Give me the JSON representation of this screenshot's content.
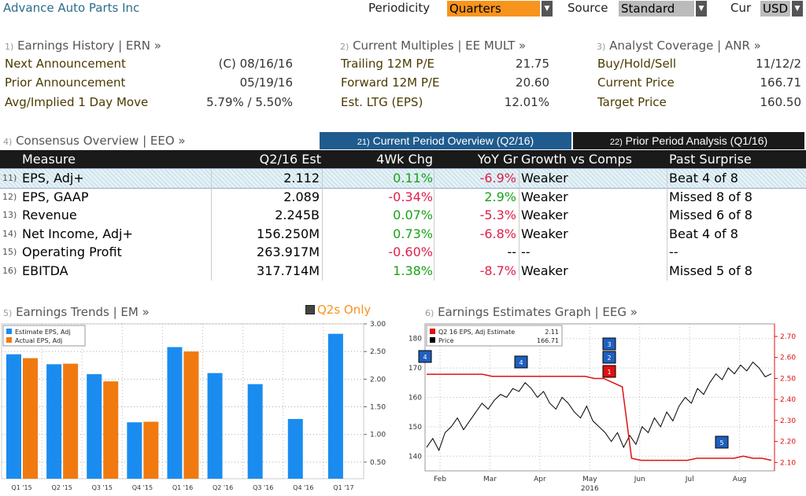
{
  "header": {
    "app_title": "Advance Auto Parts Inc",
    "periodicity_label": "Periodicity",
    "periodicity_value": "Quarters",
    "source_label": "Source",
    "source_value": "Standard",
    "currency_label": "Cur",
    "currency_value": "USD",
    "dropdown_glyph": "▼"
  },
  "earnings_history": {
    "num": "1)",
    "title": "Earnings History | ERN »",
    "rows": [
      {
        "label": "Next Announcement",
        "value": "(C)  08/16/16"
      },
      {
        "label": "Prior Announcement",
        "value": "05/19/16"
      },
      {
        "label": "Avg/Implied 1 Day Move",
        "value": "5.79% / 5.50%"
      }
    ]
  },
  "current_multiples": {
    "num": "2)",
    "title": "Current Multiples | EE MULT »",
    "rows": [
      {
        "label": "Trailing 12M P/E",
        "value": "21.75"
      },
      {
        "label": "Forward 12M P/E",
        "value": "20.60"
      },
      {
        "label": "Est. LTG (EPS)",
        "value": "12.01%"
      }
    ]
  },
  "analyst_coverage": {
    "num": "3)",
    "title": "Analyst Coverage | ANR »",
    "rows": [
      {
        "label": "Buy/Hold/Sell",
        "value": "11/12/2"
      },
      {
        "label": "Current Price",
        "value": "166.71"
      },
      {
        "label": "Target Price",
        "value": "160.50"
      }
    ]
  },
  "consensus": {
    "num": "4)",
    "title": "Consensus Overview | EEO »",
    "tab_current_num": "21)",
    "tab_current": "Current Period Overview (Q2/16)",
    "tab_prior_num": "22)",
    "tab_prior": "Prior Period Analysis (Q1/16)",
    "columns": [
      "Measure",
      "Q2/16 Est",
      "4Wk Chg",
      "YoY Gr",
      "Growth vs Comps",
      "Past Surprise"
    ],
    "rows": [
      {
        "n": "11)",
        "measure": "EPS, Adj+",
        "est": "2.112",
        "chg": "0.11%",
        "yoy": "-6.9%",
        "growth": "Weaker",
        "surprise": "Beat 4 of 8"
      },
      {
        "n": "12)",
        "measure": "EPS, GAAP",
        "est": "2.089",
        "chg": "-0.34%",
        "yoy": "2.9%",
        "growth": "Weaker",
        "surprise": "Missed 8 of 8"
      },
      {
        "n": "13)",
        "measure": "Revenue",
        "est": "2.245B",
        "chg": "0.07%",
        "yoy": "-5.3%",
        "growth": "Weaker",
        "surprise": "Missed 6 of 8"
      },
      {
        "n": "14)",
        "measure": "Net Income, Adj+",
        "est": "156.250M",
        "chg": "0.73%",
        "yoy": "-6.8%",
        "growth": "Weaker",
        "surprise": "Beat 4 of 8"
      },
      {
        "n": "15)",
        "measure": "Operating Profit",
        "est": "263.917M",
        "chg": "-0.60%",
        "yoy": "--",
        "growth": "--",
        "surprise": "--"
      },
      {
        "n": "16)",
        "measure": "EBITDA",
        "est": "317.714M",
        "chg": "1.38%",
        "yoy": "-8.7%",
        "growth": "Weaker",
        "surprise": "Missed 5 of 8"
      }
    ],
    "colors": {
      "positive": "#17a317",
      "negative": "#e0204a"
    }
  },
  "earnings_trends": {
    "num": "5)",
    "title": "Earnings Trends | EM »",
    "toggle_label": "Q2s Only"
  },
  "earnings_graph": {
    "num": "6)",
    "title": "Earnings Estimates Graph | EEG »"
  },
  "chart_data": [
    {
      "type": "bar",
      "categories": [
        "Q1 '15",
        "Q2 '15",
        "Q3 '15",
        "Q4 '15",
        "Q1 '16",
        "Q2 '16",
        "Q3 '16",
        "Q4 '16",
        "Q1 '17"
      ],
      "series": [
        {
          "name": "Estimate EPS, Adj",
          "color": "#1a8cf0",
          "values": [
            2.45,
            2.27,
            2.09,
            1.22,
            2.58,
            2.11,
            1.91,
            1.28,
            2.82
          ]
        },
        {
          "name": "Actual EPS, Adj",
          "color": "#f07a10",
          "values": [
            2.38,
            2.28,
            1.96,
            1.23,
            2.5,
            null,
            null,
            null,
            null
          ]
        }
      ],
      "y_ticks": [
        "0.50",
        "1.00",
        "1.50",
        "2.00",
        "2.50",
        "3.00"
      ],
      "ylim": [
        0.2,
        3.0
      ],
      "legend": "top-left",
      "grid": true
    },
    {
      "type": "line",
      "x_ticks": [
        "Feb",
        "Mar",
        "Apr",
        "May",
        "Jun",
        "Jul",
        "Aug"
      ],
      "x_year": "2016",
      "y_left_ticks": [
        "140",
        "150",
        "160",
        "170",
        "180"
      ],
      "y_right_ticks": [
        "2.10",
        "2.20",
        "2.30",
        "2.40",
        "2.50",
        "2.60",
        "2.70"
      ],
      "legend": [
        {
          "name": "Q2 16 EPS, Adj Estimate",
          "value": "2.11",
          "color": "#e01010"
        },
        {
          "name": "Price",
          "value": "166.71",
          "color": "#000000"
        }
      ],
      "price": [
        143,
        146,
        142,
        148,
        150,
        153,
        149,
        152,
        155,
        158,
        156,
        159,
        161,
        160,
        163,
        162,
        165,
        163,
        160,
        162,
        158,
        156,
        160,
        158,
        155,
        153,
        157,
        152,
        150,
        148,
        145,
        148,
        143,
        147,
        144,
        150,
        148,
        153,
        150,
        155,
        152,
        157,
        160,
        158,
        163,
        161,
        165,
        168,
        166,
        170,
        168,
        171,
        169,
        172,
        170,
        167,
        168
      ],
      "estimate": [
        2.52,
        2.52,
        2.52,
        2.52,
        2.52,
        2.52,
        2.52,
        2.51,
        2.51,
        2.51,
        2.51,
        2.51,
        2.51,
        2.51,
        2.51,
        2.51,
        2.51,
        2.51,
        2.5,
        2.5,
        2.48,
        2.46,
        2.12,
        2.11,
        2.11,
        2.11,
        2.11,
        2.11,
        2.11,
        2.12,
        2.12,
        2.12,
        2.12,
        2.12,
        2.13,
        2.12,
        2.12,
        2.11
      ],
      "event_markers": [
        "4",
        "4",
        "3",
        "2",
        "1",
        "5"
      ]
    }
  ]
}
